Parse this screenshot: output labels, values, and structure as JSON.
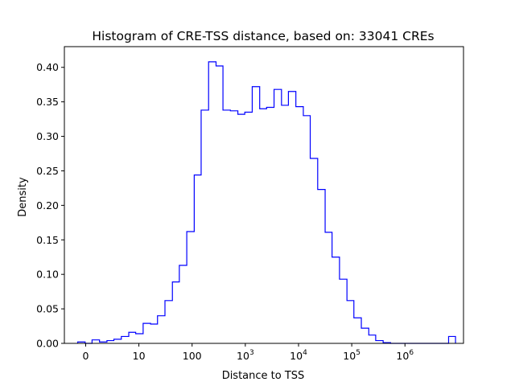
{
  "chart_data": {
    "type": "histogram",
    "title": "Histogram of CRE-TSS distance, based on: 33041 CREs",
    "xlabel": "Distance to TSS",
    "ylabel": "Density",
    "x_scale": "symlog",
    "y_range": [
      0,
      0.43
    ],
    "x_range": [
      -0.4,
      7.1
    ],
    "y_ticks": [
      "0.00",
      "0.05",
      "0.10",
      "0.15",
      "0.20",
      "0.25",
      "0.30",
      "0.35",
      "0.40"
    ],
    "x_ticks": [
      {
        "value": 0,
        "base": "0",
        "exp": ""
      },
      {
        "value": 1,
        "base": "10",
        "exp": ""
      },
      {
        "value": 2,
        "base": "100",
        "exp": ""
      },
      {
        "value": 3,
        "base": "10",
        "exp": "3"
      },
      {
        "value": 4,
        "base": "10",
        "exp": "4"
      },
      {
        "value": 5,
        "base": "10",
        "exp": "5"
      },
      {
        "value": 6,
        "base": "10",
        "exp": "6"
      }
    ],
    "bin_edges_log10": [
      -0.15,
      -0.01,
      0.12,
      0.26,
      0.4,
      0.53,
      0.67,
      0.81,
      0.94,
      1.08,
      1.22,
      1.35,
      1.49,
      1.63,
      1.76,
      1.9,
      2.04,
      2.17,
      2.31,
      2.45,
      2.58,
      2.72,
      2.86,
      2.99,
      3.13,
      3.27,
      3.4,
      3.54,
      3.68,
      3.81,
      3.95,
      4.09,
      4.22,
      4.36,
      4.5,
      4.63,
      4.77,
      4.91,
      5.04,
      5.18,
      5.32,
      5.45,
      5.59,
      5.73,
      5.86,
      6.0,
      6.14,
      6.27,
      6.41,
      6.55,
      6.68,
      6.82,
      6.95
    ],
    "densities": [
      0.002,
      0.0,
      0.005,
      0.002,
      0.004,
      0.006,
      0.01,
      0.016,
      0.014,
      0.029,
      0.028,
      0.04,
      0.062,
      0.089,
      0.113,
      0.162,
      0.244,
      0.338,
      0.408,
      0.402,
      0.338,
      0.337,
      0.332,
      0.335,
      0.372,
      0.34,
      0.342,
      0.368,
      0.345,
      0.365,
      0.343,
      0.33,
      0.268,
      0.223,
      0.161,
      0.125,
      0.093,
      0.062,
      0.037,
      0.022,
      0.012,
      0.004,
      0.001,
      0.0,
      0.0,
      0.0,
      0.0,
      0.0,
      0.0,
      0.0,
      0.0,
      0.01
    ],
    "line_color": "#0000ff"
  }
}
